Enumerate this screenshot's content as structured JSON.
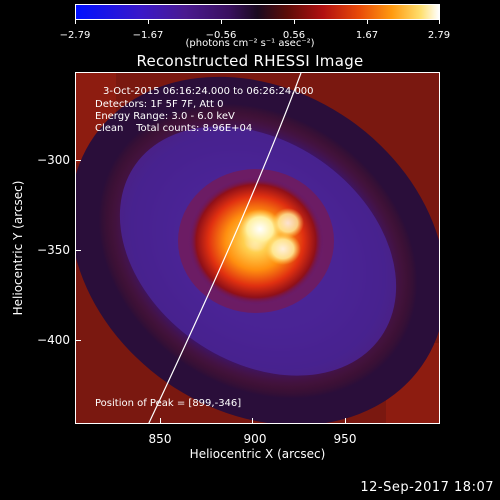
{
  "colorbar": {
    "ticks": [
      "−2.79",
      "−1.67",
      "−0.56",
      "0.56",
      "1.67",
      "2.79"
    ],
    "units": "(photons cm⁻² s⁻¹ asec⁻²)"
  },
  "title": "Reconstructed RHESSI Image",
  "info": {
    "time": "3-Oct-2015 06:16:24.000 to 06:26:24.000",
    "detectors": "Detectors: 1F 5F 7F, Att 0",
    "energy": "Energy Range: 3.0 - 6.0 keV",
    "clean": "Clean    Total counts: 8.96E+04",
    "peak": "Position of Peak = [899,-346]"
  },
  "axes": {
    "xlabel": "Heliocentric X (arcsec)",
    "ylabel": "Heliocentric Y (arcsec)",
    "xticks": [
      "850",
      "900",
      "950"
    ],
    "yticks": [
      "−300",
      "−350",
      "−400"
    ]
  },
  "footer": "12-Sep-2017 18:07"
}
